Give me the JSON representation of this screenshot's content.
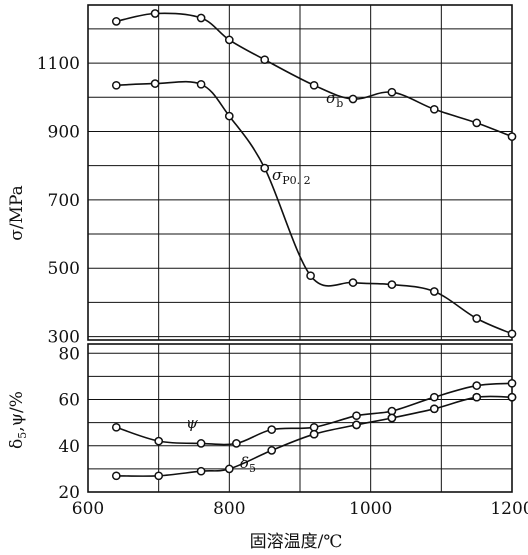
{
  "chart_data": [
    {
      "type": "line",
      "panel": "upper",
      "ylabel": "σ/MPa",
      "ylim": [
        290,
        1270
      ],
      "yticks": [
        300,
        500,
        700,
        900,
        1100
      ],
      "grid": true,
      "series": [
        {
          "name": "σb",
          "name_main": "σ",
          "name_sub": "b",
          "points": [
            [
              640,
              1222
            ],
            [
              695,
              1245
            ],
            [
              760,
              1232
            ],
            [
              800,
              1168
            ],
            [
              850,
              1110
            ],
            [
              920,
              1035
            ],
            [
              975,
              995
            ],
            [
              1030,
              1015
            ],
            [
              1090,
              965
            ],
            [
              1150,
              925
            ],
            [
              1200,
              885
            ]
          ]
        },
        {
          "name": "σP0.2",
          "name_main": "σ",
          "name_sub": "P0. 2",
          "points": [
            [
              640,
              1035
            ],
            [
              695,
              1040
            ],
            [
              760,
              1038
            ],
            [
              800,
              945
            ],
            [
              850,
              793
            ],
            [
              915,
              478
            ],
            [
              975,
              458
            ],
            [
              1030,
              452
            ],
            [
              1090,
              432
            ],
            [
              1150,
              353
            ],
            [
              1200,
              308
            ]
          ]
        }
      ]
    },
    {
      "type": "line",
      "panel": "lower",
      "ylabel": "δ5,ψ/%",
      "ylabel_main": "δ",
      "ylabel_sub": "5",
      "ylabel_rest": ",ψ/%",
      "xlabel": "固溶温度/℃",
      "xlim": [
        600,
        1200
      ],
      "xticks": [
        600,
        800,
        1000,
        1200
      ],
      "ylim": [
        20,
        84
      ],
      "yticks": [
        20,
        40,
        60,
        80
      ],
      "grid": true,
      "series": [
        {
          "name": "ψ",
          "name_main": "ψ",
          "name_sub": "",
          "points": [
            [
              640,
              48
            ],
            [
              700,
              42
            ],
            [
              760,
              41
            ],
            [
              810,
              41
            ],
            [
              860,
              47
            ],
            [
              920,
              48
            ],
            [
              980,
              53
            ],
            [
              1030,
              55
            ],
            [
              1090,
              61
            ],
            [
              1150,
              66
            ],
            [
              1200,
              67
            ]
          ],
          "extra_points": [
            [
              920,
              45
            ],
            [
              980,
              49
            ],
            [
              1030,
              52
            ],
            [
              1090,
              56
            ],
            [
              1150,
              61
            ],
            [
              1200,
              61
            ]
          ]
        },
        {
          "name": "δ5",
          "name_main": "δ",
          "name_sub": "5",
          "points": [
            [
              640,
              27
            ],
            [
              700,
              27
            ],
            [
              760,
              29
            ],
            [
              800,
              30
            ],
            [
              860,
              38
            ],
            [
              920,
              45
            ],
            [
              980,
              49
            ],
            [
              1030,
              52
            ],
            [
              1090,
              56
            ],
            [
              1150,
              61
            ],
            [
              1200,
              61
            ]
          ]
        }
      ]
    }
  ]
}
